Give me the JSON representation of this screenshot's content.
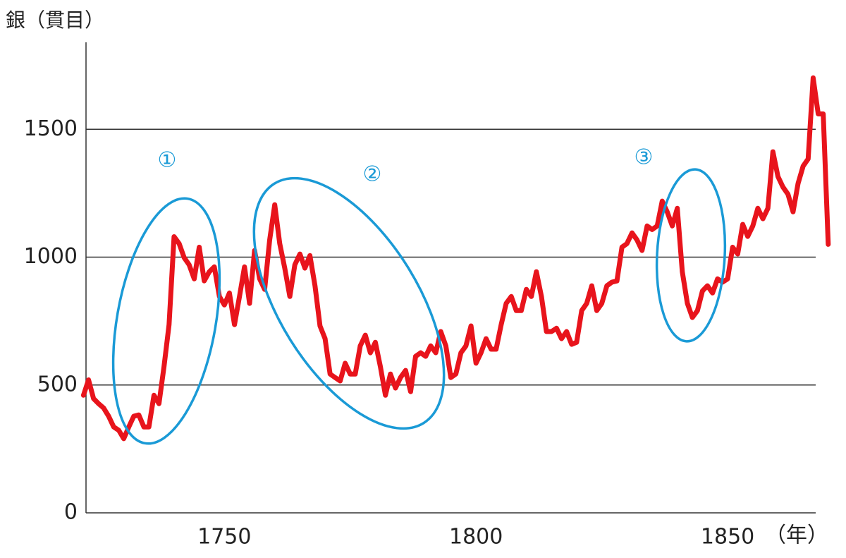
{
  "chart_data": {
    "type": "line",
    "y_label": "銀（貫目）",
    "x_unit_label": "（年）",
    "xlim": [
      1722.5,
      1867.5
    ],
    "xticks": [
      1750,
      1800,
      1850
    ],
    "ylim": [
      0,
      1840
    ],
    "yticks": [
      0,
      500,
      1000,
      1500
    ],
    "grid": true,
    "annotations": [
      "①",
      "②",
      "③"
    ],
    "x": [
      1722,
      1723,
      1724,
      1725,
      1726,
      1727,
      1728,
      1729,
      1730,
      1731,
      1732,
      1733,
      1734,
      1735,
      1736,
      1737,
      1738,
      1739,
      1740,
      1741,
      1742,
      1743,
      1744,
      1745,
      1746,
      1747,
      1748,
      1749,
      1750,
      1751,
      1752,
      1753,
      1754,
      1755,
      1756,
      1757,
      1758,
      1759,
      1760,
      1761,
      1762,
      1763,
      1764,
      1765,
      1766,
      1767,
      1768,
      1769,
      1770,
      1771,
      1772,
      1773,
      1774,
      1775,
      1776,
      1777,
      1778,
      1779,
      1780,
      1781,
      1782,
      1783,
      1784,
      1785,
      1786,
      1787,
      1788,
      1789,
      1790,
      1791,
      1792,
      1793,
      1794,
      1795,
      1796,
      1797,
      1798,
      1799,
      1800,
      1801,
      1802,
      1803,
      1804,
      1805,
      1806,
      1807,
      1808,
      1809,
      1810,
      1811,
      1812,
      1813,
      1814,
      1815,
      1816,
      1817,
      1818,
      1819,
      1820,
      1821,
      1822,
      1823,
      1824,
      1825,
      1826,
      1827,
      1828,
      1829,
      1830,
      1831,
      1832,
      1833,
      1834,
      1835,
      1836,
      1837,
      1838,
      1839,
      1840,
      1841,
      1842,
      1843,
      1844,
      1845,
      1846,
      1847,
      1848,
      1849,
      1850,
      1851,
      1852,
      1853,
      1854,
      1855,
      1856,
      1857,
      1858,
      1859,
      1860,
      1861,
      1862,
      1863,
      1864,
      1865,
      1866,
      1867,
      1868,
      1869,
      1870
    ],
    "series": [
      {
        "color": "#e8141c",
        "values": [
          460,
          520,
          447,
          427,
          410,
          378,
          336,
          323,
          290,
          336,
          378,
          383,
          336,
          336,
          460,
          427,
          571,
          736,
          1080,
          1053,
          998,
          970,
          915,
          1039,
          907,
          943,
          962,
          846,
          813,
          860,
          736,
          846,
          962,
          819,
          1026,
          915,
          874,
          1067,
          1205,
          1053,
          957,
          846,
          970,
          1012,
          957,
          1006,
          888,
          731,
          681,
          543,
          529,
          516,
          585,
          543,
          543,
          653,
          695,
          626,
          667,
          571,
          460,
          543,
          488,
          529,
          557,
          474,
          612,
          626,
          612,
          653,
          626,
          709,
          653,
          529,
          543,
          626,
          653,
          731,
          585,
          626,
          681,
          640,
          640,
          736,
          819,
          846,
          791,
          791,
          874,
          846,
          943,
          846,
          709,
          709,
          722,
          681,
          709,
          659,
          667,
          791,
          819,
          888,
          791,
          819,
          888,
          902,
          907,
          1039,
          1053,
          1095,
          1067,
          1026,
          1122,
          1108,
          1122,
          1219,
          1177,
          1122,
          1191,
          943,
          819,
          764,
          791,
          868,
          888,
          860,
          915,
          902,
          915,
          1039,
          1012,
          1128,
          1081,
          1122,
          1191,
          1150,
          1191,
          1412,
          1315,
          1274,
          1246,
          1177,
          1288,
          1356,
          1384,
          1701,
          1560,
          1560,
          1050
        ]
      }
    ]
  }
}
